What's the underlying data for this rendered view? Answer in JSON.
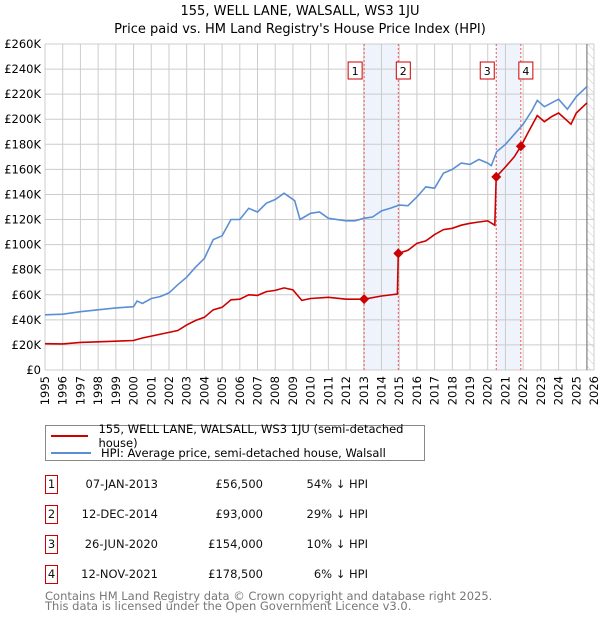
{
  "chart_data": {
    "type": "line",
    "title": "155, WELL LANE, WALSALL, WS3 1JU",
    "subtitle": "Price paid vs. HM Land Registry's House Price Index (HPI)",
    "xlabel": "",
    "ylabel": "",
    "xlim": [
      1995,
      2026
    ],
    "ylim": [
      0,
      260000
    ],
    "x_ticks": [
      "1995",
      "1996",
      "1997",
      "1998",
      "1999",
      "2000",
      "2001",
      "2002",
      "2003",
      "2004",
      "2005",
      "2006",
      "2007",
      "2008",
      "2009",
      "2010",
      "2011",
      "2012",
      "2013",
      "2014",
      "2015",
      "2016",
      "2017",
      "2018",
      "2019",
      "2020",
      "2021",
      "2022",
      "2023",
      "2024",
      "2025",
      "2026"
    ],
    "y_ticks": [
      {
        "v": 0,
        "label": "£0"
      },
      {
        "v": 20000,
        "label": "£20K"
      },
      {
        "v": 40000,
        "label": "£40K"
      },
      {
        "v": 60000,
        "label": "£60K"
      },
      {
        "v": 80000,
        "label": "£80K"
      },
      {
        "v": 100000,
        "label": "£100K"
      },
      {
        "v": 120000,
        "label": "£120K"
      },
      {
        "v": 140000,
        "label": "£140K"
      },
      {
        "v": 160000,
        "label": "£160K"
      },
      {
        "v": 180000,
        "label": "£180K"
      },
      {
        "v": 200000,
        "label": "£200K"
      },
      {
        "v": 220000,
        "label": "£220K"
      },
      {
        "v": 240000,
        "label": "£240K"
      },
      {
        "v": 260000,
        "label": "£260K"
      }
    ],
    "grid": true,
    "series": [
      {
        "name": "155, WELL LANE, WALSALL, WS3 1JU (semi-detached house)",
        "color": "#cc0000",
        "x": [
          1995,
          1996,
          1997,
          1998,
          1999,
          2000,
          2000.5,
          2001,
          2002,
          2002.5,
          2003,
          2003.5,
          2004,
          2004.5,
          2005,
          2005.5,
          2006,
          2006.5,
          2007,
          2007.5,
          2008,
          2008.5,
          2009,
          2009.5,
          2010,
          2011,
          2012,
          2013.02,
          2014,
          2014.9,
          2014.95,
          2015.5,
          2016,
          2016.5,
          2017,
          2017.5,
          2018,
          2018.5,
          2019,
          2019.5,
          2020,
          2020.4,
          2020.48,
          2021,
          2021.5,
          2021.87,
          2022.3,
          2022.8,
          2023.2,
          2023.6,
          2024,
          2024.7,
          2025,
          2025.6
        ],
        "y": [
          21000,
          20800,
          22000,
          22500,
          23000,
          23500,
          25500,
          27000,
          30000,
          31500,
          36000,
          39500,
          42000,
          48000,
          50000,
          56000,
          56500,
          60000,
          59500,
          62500,
          63500,
          65500,
          64000,
          55500,
          57000,
          58000,
          56500,
          56500,
          59000,
          60500,
          93000,
          95500,
          101000,
          103000,
          108000,
          112000,
          113000,
          115500,
          117000,
          118000,
          119000,
          115500,
          154000,
          162000,
          170000,
          178500,
          190000,
          203000,
          198000,
          202000,
          205000,
          196000,
          205000,
          213000
        ]
      },
      {
        "name": "HPI: Average price, semi-detached house, Walsall",
        "color": "#5b8fd4",
        "x": [
          1995,
          1996,
          1997,
          1998,
          1999,
          2000,
          2000.2,
          2000.5,
          2001,
          2001.5,
          2002,
          2002.5,
          2003,
          2003.5,
          2004,
          2004.5,
          2005,
          2005.5,
          2006,
          2006.5,
          2007,
          2007.5,
          2008,
          2008.5,
          2008.9,
          2009.1,
          2009.4,
          2010,
          2010.5,
          2011,
          2012,
          2012.5,
          2013,
          2013.5,
          2014,
          2014.5,
          2015,
          2015.5,
          2016,
          2016.5,
          2017,
          2017.5,
          2018,
          2018.5,
          2019,
          2019.5,
          2020,
          2020.2,
          2020.5,
          2021,
          2021.5,
          2022,
          2022.5,
          2022.8,
          2023.2,
          2024,
          2024.5,
          2025,
          2025.6
        ],
        "y": [
          44000,
          44500,
          46500,
          48000,
          49500,
          50500,
          55000,
          53000,
          57000,
          58500,
          61500,
          68000,
          74000,
          82000,
          89000,
          104000,
          107000,
          120000,
          120000,
          129000,
          126000,
          133000,
          136000,
          141000,
          137000,
          135000,
          120000,
          125000,
          126000,
          121000,
          119000,
          119000,
          121000,
          122000,
          127000,
          129000,
          131500,
          131000,
          138000,
          146000,
          145000,
          157000,
          160000,
          165000,
          164000,
          168000,
          165000,
          163000,
          174000,
          180000,
          188000,
          196000,
          207000,
          215000,
          210000,
          216000,
          208000,
          218000,
          226000
        ]
      }
    ],
    "sales": [
      {
        "n": "1",
        "x": 2013.02,
        "y": 56500
      },
      {
        "n": "2",
        "x": 2014.95,
        "y": 93000
      },
      {
        "n": "3",
        "x": 2020.48,
        "y": 154000
      },
      {
        "n": "4",
        "x": 2021.87,
        "y": 178500
      }
    ],
    "shaded_ranges": [
      [
        2013.02,
        2014.95
      ],
      [
        2020.48,
        2021.87
      ]
    ],
    "data_end": 2025.6
  },
  "legend": {
    "items": [
      {
        "label": "155, WELL LANE, WALSALL, WS3 1JU (semi-detached house)",
        "color": "#cc0000"
      },
      {
        "label": "HPI: Average price, semi-detached house, Walsall",
        "color": "#5b8fd4"
      }
    ]
  },
  "table": [
    {
      "n": "1",
      "date": "07-JAN-2013",
      "price": "£56,500",
      "hpi": "54% ↓ HPI"
    },
    {
      "n": "2",
      "date": "12-DEC-2014",
      "price": "£93,000",
      "hpi": "29% ↓ HPI"
    },
    {
      "n": "3",
      "date": "26-JUN-2020",
      "price": "£154,000",
      "hpi": "10% ↓ HPI"
    },
    {
      "n": "4",
      "date": "12-NOV-2021",
      "price": "£178,500",
      "hpi": "6% ↓ HPI"
    }
  ],
  "footer": {
    "line1": "Contains HM Land Registry data © Crown copyright and database right 2025.",
    "line2": "This data is licensed under the Open Government Licence v3.0."
  }
}
